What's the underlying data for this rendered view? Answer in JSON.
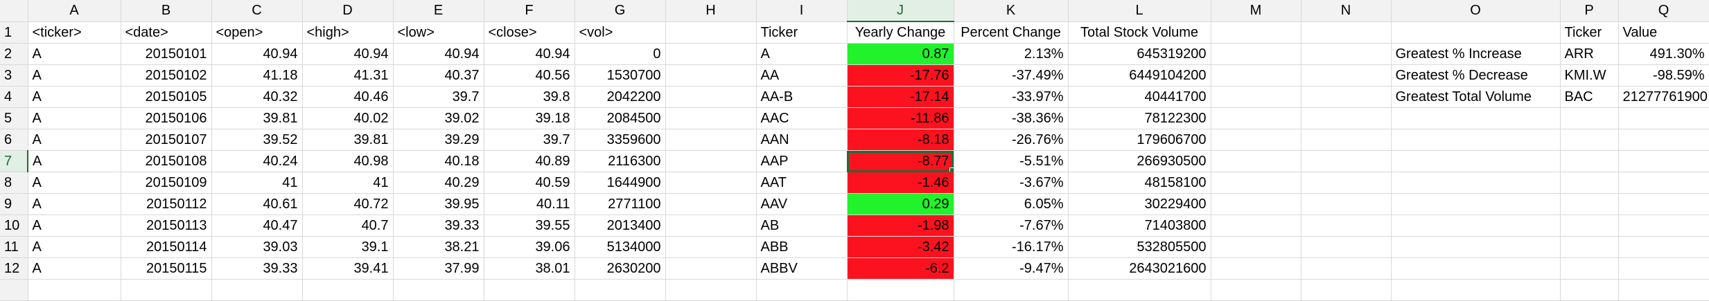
{
  "columns": [
    "A",
    "B",
    "C",
    "D",
    "E",
    "F",
    "G",
    "H",
    "I",
    "J",
    "K",
    "L",
    "M",
    "N",
    "O",
    "P",
    "Q"
  ],
  "active_column": "J",
  "active_row": "7",
  "colors": {
    "positive": "#22f22c",
    "negative": "#fc121f",
    "selection": "#1d6b35"
  },
  "rows": [
    {
      "num": "1",
      "cells": [
        "<ticker>",
        "<date>",
        "<open>",
        "<high>",
        "<low>",
        "<close>",
        "<vol>",
        "",
        "Ticker",
        "Yearly Change",
        "Percent Change",
        "Total Stock Volume",
        "",
        "",
        "",
        "Ticker",
        "Value"
      ]
    },
    {
      "num": "2",
      "cells": [
        "A",
        "20150101",
        "40.94",
        "40.94",
        "40.94",
        "40.94",
        "0",
        "",
        "A",
        "0.87",
        "2.13%",
        "645319200",
        "",
        "",
        "Greatest % Increase",
        "ARR",
        "491.30%"
      ]
    },
    {
      "num": "3",
      "cells": [
        "A",
        "20150102",
        "41.18",
        "41.31",
        "40.37",
        "40.56",
        "1530700",
        "",
        "AA",
        "-17.76",
        "-37.49%",
        "6449104200",
        "",
        "",
        "Greatest % Decrease",
        "KMI.W",
        "-98.59%"
      ]
    },
    {
      "num": "4",
      "cells": [
        "A",
        "20150105",
        "40.32",
        "40.46",
        "39.7",
        "39.8",
        "2042200",
        "",
        "AA-B",
        "-17.14",
        "-33.97%",
        "40441700",
        "",
        "",
        "Greatest Total Volume",
        "BAC",
        "21277761900"
      ]
    },
    {
      "num": "5",
      "cells": [
        "A",
        "20150106",
        "39.81",
        "40.02",
        "39.02",
        "39.18",
        "2084500",
        "",
        "AAC",
        "-11.86",
        "-38.36%",
        "78122300",
        "",
        "",
        "",
        "",
        ""
      ]
    },
    {
      "num": "6",
      "cells": [
        "A",
        "20150107",
        "39.52",
        "39.81",
        "39.29",
        "39.7",
        "3359600",
        "",
        "AAN",
        "-8.18",
        "-26.76%",
        "179606700",
        "",
        "",
        "",
        "",
        ""
      ]
    },
    {
      "num": "7",
      "cells": [
        "A",
        "20150108",
        "40.24",
        "40.98",
        "40.18",
        "40.89",
        "2116300",
        "",
        "AAP",
        "-8.77",
        "-5.51%",
        "266930500",
        "",
        "",
        "",
        "",
        ""
      ]
    },
    {
      "num": "8",
      "cells": [
        "A",
        "20150109",
        "41",
        "41",
        "40.29",
        "40.59",
        "1644900",
        "",
        "AAT",
        "-1.46",
        "-3.67%",
        "48158100",
        "",
        "",
        "",
        "",
        ""
      ]
    },
    {
      "num": "9",
      "cells": [
        "A",
        "20150112",
        "40.61",
        "40.72",
        "39.95",
        "40.11",
        "2771100",
        "",
        "AAV",
        "0.29",
        "6.05%",
        "30229400",
        "",
        "",
        "",
        "",
        ""
      ]
    },
    {
      "num": "10",
      "cells": [
        "A",
        "20150113",
        "40.47",
        "40.7",
        "39.33",
        "39.55",
        "2013400",
        "",
        "AB",
        "-1.98",
        "-7.67%",
        "71403800",
        "",
        "",
        "",
        "",
        ""
      ]
    },
    {
      "num": "11",
      "cells": [
        "A",
        "20150114",
        "39.03",
        "39.1",
        "38.21",
        "39.06",
        "5134000",
        "",
        "ABB",
        "-3.42",
        "-16.17%",
        "532805500",
        "",
        "",
        "",
        "",
        ""
      ]
    },
    {
      "num": "12",
      "cells": [
        "A",
        "20150115",
        "39.33",
        "39.41",
        "37.99",
        "38.01",
        "2630200",
        "",
        "ABBV",
        "-6.2",
        "-9.47%",
        "2643021600",
        "",
        "",
        "",
        "",
        ""
      ]
    },
    {
      "num": "",
      "cells": [
        "",
        "",
        "",
        "",
        "",
        "",
        "",
        "",
        "",
        "",
        "",
        "",
        "",
        "",
        "",
        "",
        ""
      ]
    }
  ]
}
